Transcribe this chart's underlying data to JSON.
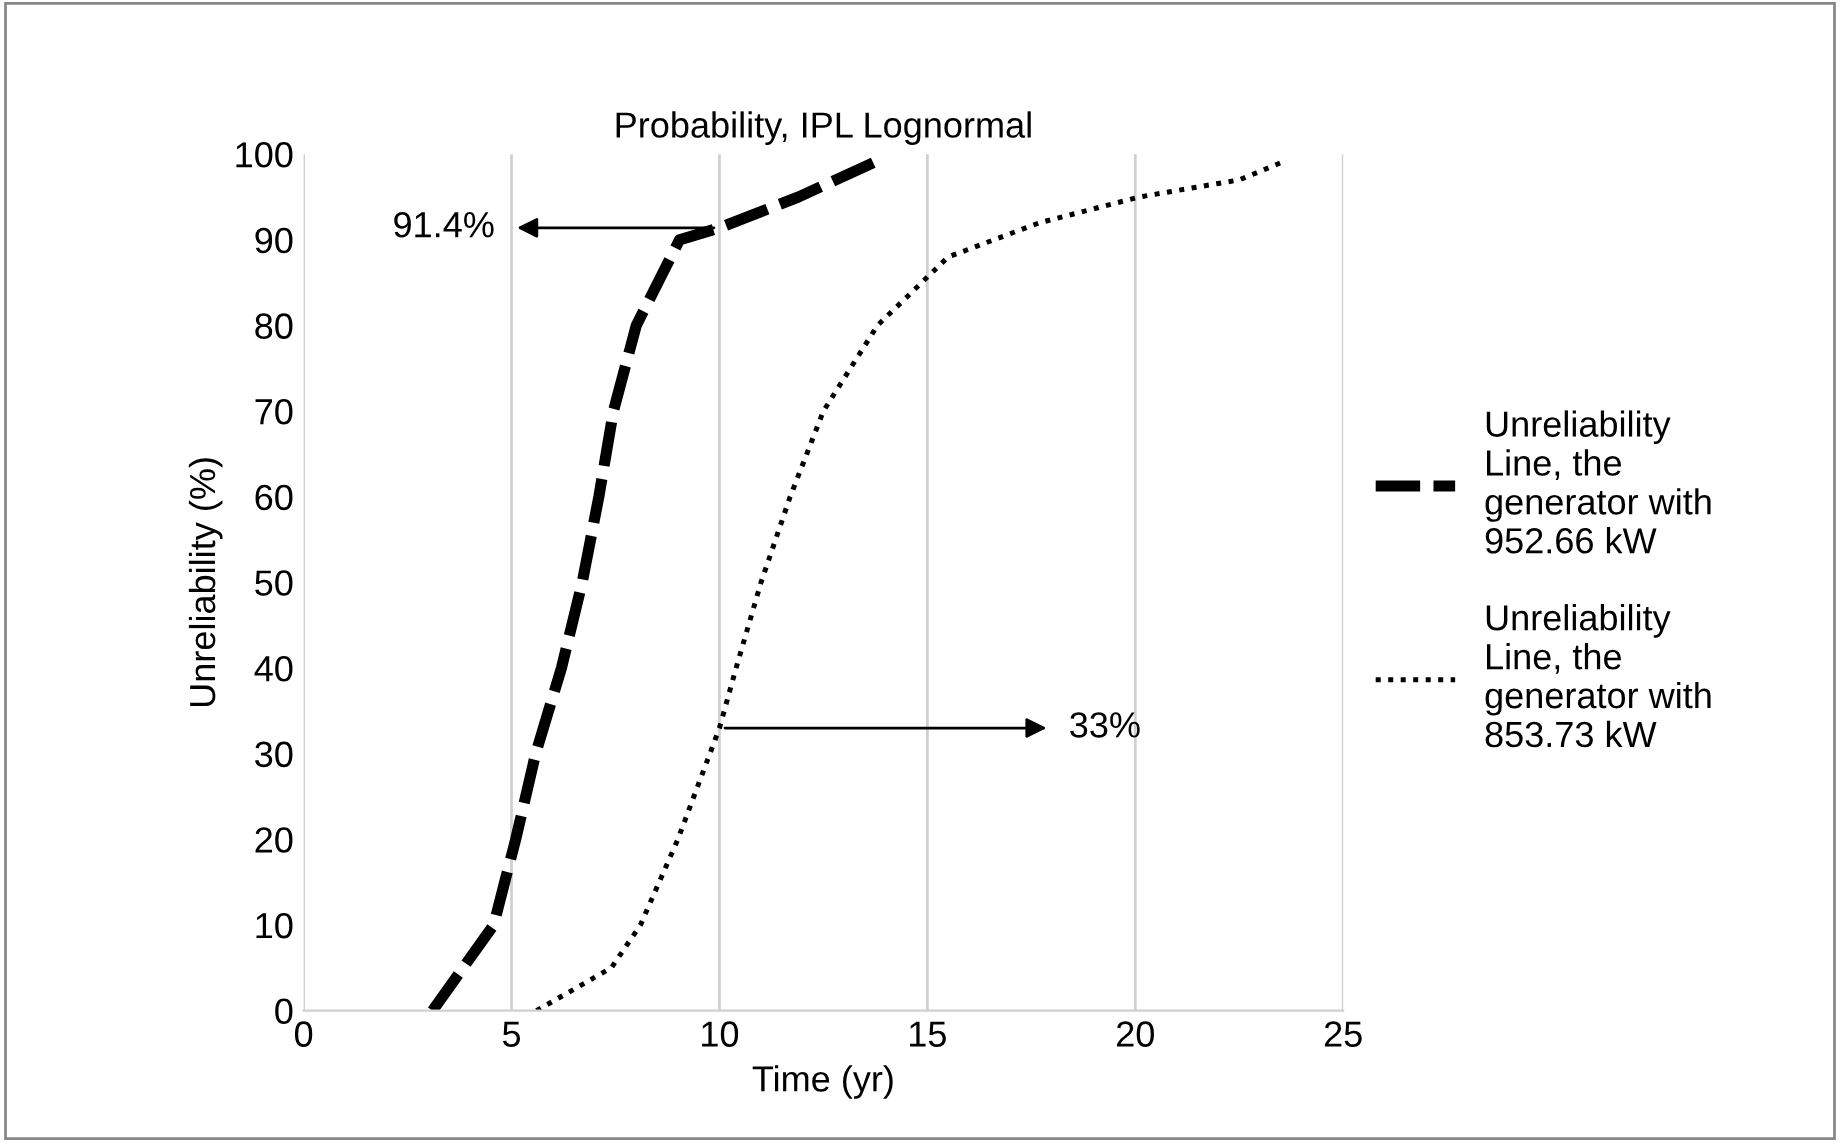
{
  "chart_data": {
    "type": "line",
    "title": "Probability, IPL Lognormal",
    "xlabel": "Time (yr)",
    "ylabel": "Unreliability (%)",
    "series": [
      {
        "name": "Unreliability\nLine, the\ngenerator with\n952.66 kW",
        "color": "#000000",
        "line_style": "dashed",
        "x": [
          3.1,
          4.57,
          5.1,
          5.58,
          6.2,
          6.7,
          7.1,
          7.45,
          8.0,
          9.04,
          10.0,
          11.9,
          13.7
        ],
        "values": [
          0,
          10,
          20,
          30,
          40,
          50,
          60,
          70,
          80,
          90,
          91.4,
          95,
          99
        ]
      },
      {
        "name": "Unreliability\nLine, the\ngenerator with\n853.73 kW",
        "color": "#000000",
        "line_style": "dotted",
        "x": [
          5.6,
          7.4,
          8.1,
          9.0,
          10.0,
          10.4,
          11.0,
          11.7,
          12.5,
          13.8,
          15.5,
          17.7,
          20.1,
          22.5,
          23.5
        ],
        "values": [
          0,
          5,
          10,
          20,
          33,
          40,
          50,
          60,
          70,
          80,
          88,
          92,
          95,
          97,
          99
        ]
      }
    ],
    "annotations": [
      {
        "text": "91.4%",
        "x": 10.0,
        "y": 91.4
      },
      {
        "text": "33%",
        "x": 10.0,
        "y": 33
      }
    ],
    "xlim": [
      0,
      25
    ],
    "xticks": [
      0,
      5,
      10,
      15,
      20,
      25
    ],
    "ylim": [
      0,
      100
    ],
    "yticks": [
      0,
      10,
      20,
      30,
      40,
      50,
      60,
      70,
      80,
      90,
      100
    ],
    "grid": "x",
    "legend": "right",
    "marker": "none"
  }
}
